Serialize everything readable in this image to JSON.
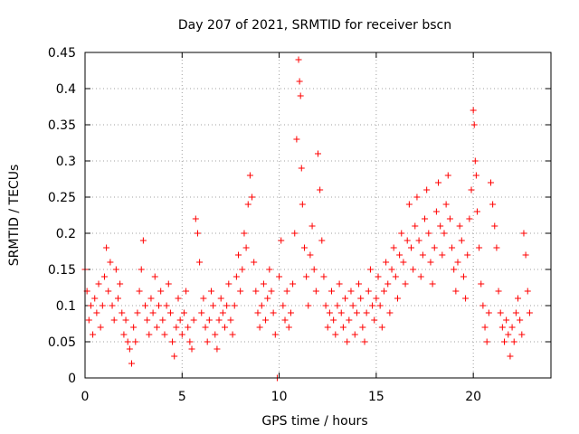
{
  "chart_data": {
    "type": "scatter",
    "title": "Day 207 of 2021, SRMTID for receiver bscn",
    "xlabel": "GPS time / hours",
    "ylabel": "SRMTID / TECUs",
    "xlim": [
      0,
      24
    ],
    "ylim": [
      0,
      0.45
    ],
    "xticks": [
      0,
      5,
      10,
      15,
      20
    ],
    "xtick_labels": [
      "0",
      "5",
      "10",
      "15",
      "20"
    ],
    "yticks": [
      0,
      0.05,
      0.1,
      0.15,
      0.2,
      0.25,
      0.3,
      0.35,
      0.4,
      0.45
    ],
    "ytick_labels": [
      "0",
      "0.05",
      "0.1",
      "0.15",
      "0.2",
      "0.25",
      "0.3",
      "0.35",
      "0.4",
      "0.45"
    ],
    "grid": true,
    "marker": "plus",
    "color": "#ff0000",
    "series": [
      {
        "name": "SRMTID",
        "points": [
          [
            0.0,
            0.15
          ],
          [
            0.1,
            0.12
          ],
          [
            0.2,
            0.08
          ],
          [
            0.3,
            0.1
          ],
          [
            0.4,
            0.06
          ],
          [
            0.5,
            0.11
          ],
          [
            0.6,
            0.09
          ],
          [
            0.7,
            0.13
          ],
          [
            0.8,
            0.07
          ],
          [
            0.9,
            0.1
          ],
          [
            1.0,
            0.14
          ],
          [
            1.1,
            0.18
          ],
          [
            1.2,
            0.12
          ],
          [
            1.3,
            0.16
          ],
          [
            1.4,
            0.1
          ],
          [
            1.5,
            0.08
          ],
          [
            1.6,
            0.15
          ],
          [
            1.7,
            0.11
          ],
          [
            1.8,
            0.13
          ],
          [
            1.9,
            0.09
          ],
          [
            2.0,
            0.06
          ],
          [
            2.1,
            0.08
          ],
          [
            2.2,
            0.05
          ],
          [
            2.3,
            0.04
          ],
          [
            2.4,
            0.02
          ],
          [
            2.5,
            0.07
          ],
          [
            2.6,
            0.05
          ],
          [
            2.7,
            0.09
          ],
          [
            2.8,
            0.12
          ],
          [
            2.9,
            0.15
          ],
          [
            3.0,
            0.19
          ],
          [
            3.1,
            0.1
          ],
          [
            3.2,
            0.08
          ],
          [
            3.3,
            0.06
          ],
          [
            3.4,
            0.11
          ],
          [
            3.5,
            0.09
          ],
          [
            3.6,
            0.14
          ],
          [
            3.7,
            0.07
          ],
          [
            3.8,
            0.1
          ],
          [
            3.9,
            0.12
          ],
          [
            4.0,
            0.08
          ],
          [
            4.1,
            0.06
          ],
          [
            4.2,
            0.1
          ],
          [
            4.3,
            0.13
          ],
          [
            4.4,
            0.09
          ],
          [
            4.5,
            0.05
          ],
          [
            4.6,
            0.03
          ],
          [
            4.7,
            0.07
          ],
          [
            4.8,
            0.11
          ],
          [
            4.9,
            0.08
          ],
          [
            5.0,
            0.06
          ],
          [
            5.1,
            0.09
          ],
          [
            5.2,
            0.12
          ],
          [
            5.3,
            0.07
          ],
          [
            5.4,
            0.05
          ],
          [
            5.5,
            0.04
          ],
          [
            5.6,
            0.08
          ],
          [
            5.7,
            0.22
          ],
          [
            5.8,
            0.2
          ],
          [
            5.9,
            0.16
          ],
          [
            6.0,
            0.09
          ],
          [
            6.1,
            0.11
          ],
          [
            6.2,
            0.07
          ],
          [
            6.3,
            0.05
          ],
          [
            6.4,
            0.08
          ],
          [
            6.5,
            0.12
          ],
          [
            6.6,
            0.1
          ],
          [
            6.7,
            0.06
          ],
          [
            6.8,
            0.04
          ],
          [
            6.9,
            0.08
          ],
          [
            7.0,
            0.11
          ],
          [
            7.1,
            0.09
          ],
          [
            7.2,
            0.07
          ],
          [
            7.3,
            0.1
          ],
          [
            7.4,
            0.13
          ],
          [
            7.5,
            0.08
          ],
          [
            7.6,
            0.06
          ],
          [
            7.7,
            0.1
          ],
          [
            7.8,
            0.14
          ],
          [
            7.9,
            0.17
          ],
          [
            8.0,
            0.12
          ],
          [
            8.1,
            0.15
          ],
          [
            8.2,
            0.2
          ],
          [
            8.3,
            0.18
          ],
          [
            8.4,
            0.24
          ],
          [
            8.5,
            0.28
          ],
          [
            8.6,
            0.25
          ],
          [
            8.7,
            0.16
          ],
          [
            8.8,
            0.12
          ],
          [
            8.9,
            0.09
          ],
          [
            9.0,
            0.07
          ],
          [
            9.1,
            0.1
          ],
          [
            9.2,
            0.13
          ],
          [
            9.3,
            0.08
          ],
          [
            9.4,
            0.11
          ],
          [
            9.5,
            0.15
          ],
          [
            9.6,
            0.12
          ],
          [
            9.7,
            0.09
          ],
          [
            9.8,
            0.06
          ],
          [
            9.9,
            0.0
          ],
          [
            10.0,
            0.14
          ],
          [
            10.1,
            0.19
          ],
          [
            10.2,
            0.1
          ],
          [
            10.3,
            0.08
          ],
          [
            10.4,
            0.12
          ],
          [
            10.5,
            0.07
          ],
          [
            10.6,
            0.09
          ],
          [
            10.7,
            0.13
          ],
          [
            10.8,
            0.2
          ],
          [
            10.9,
            0.33
          ],
          [
            11.0,
            0.44
          ],
          [
            11.05,
            0.41
          ],
          [
            11.1,
            0.39
          ],
          [
            11.15,
            0.29
          ],
          [
            11.2,
            0.24
          ],
          [
            11.3,
            0.18
          ],
          [
            11.4,
            0.14
          ],
          [
            11.5,
            0.1
          ],
          [
            11.6,
            0.17
          ],
          [
            11.7,
            0.21
          ],
          [
            11.8,
            0.15
          ],
          [
            11.9,
            0.12
          ],
          [
            12.0,
            0.31
          ],
          [
            12.1,
            0.26
          ],
          [
            12.2,
            0.19
          ],
          [
            12.3,
            0.14
          ],
          [
            12.4,
            0.1
          ],
          [
            12.5,
            0.07
          ],
          [
            12.6,
            0.09
          ],
          [
            12.7,
            0.12
          ],
          [
            12.8,
            0.08
          ],
          [
            12.9,
            0.06
          ],
          [
            13.0,
            0.1
          ],
          [
            13.1,
            0.13
          ],
          [
            13.2,
            0.09
          ],
          [
            13.3,
            0.07
          ],
          [
            13.4,
            0.11
          ],
          [
            13.5,
            0.05
          ],
          [
            13.6,
            0.08
          ],
          [
            13.7,
            0.12
          ],
          [
            13.8,
            0.1
          ],
          [
            13.9,
            0.06
          ],
          [
            14.0,
            0.09
          ],
          [
            14.1,
            0.13
          ],
          [
            14.2,
            0.11
          ],
          [
            14.3,
            0.07
          ],
          [
            14.4,
            0.05
          ],
          [
            14.5,
            0.09
          ],
          [
            14.6,
            0.12
          ],
          [
            14.7,
            0.15
          ],
          [
            14.8,
            0.1
          ],
          [
            14.9,
            0.08
          ],
          [
            15.0,
            0.11
          ],
          [
            15.1,
            0.14
          ],
          [
            15.2,
            0.1
          ],
          [
            15.3,
            0.07
          ],
          [
            15.4,
            0.12
          ],
          [
            15.5,
            0.16
          ],
          [
            15.6,
            0.13
          ],
          [
            15.7,
            0.09
          ],
          [
            15.8,
            0.15
          ],
          [
            15.9,
            0.18
          ],
          [
            16.0,
            0.14
          ],
          [
            16.1,
            0.11
          ],
          [
            16.2,
            0.17
          ],
          [
            16.3,
            0.2
          ],
          [
            16.4,
            0.16
          ],
          [
            16.5,
            0.13
          ],
          [
            16.6,
            0.19
          ],
          [
            16.7,
            0.24
          ],
          [
            16.8,
            0.18
          ],
          [
            16.9,
            0.15
          ],
          [
            17.0,
            0.21
          ],
          [
            17.1,
            0.25
          ],
          [
            17.2,
            0.19
          ],
          [
            17.3,
            0.14
          ],
          [
            17.4,
            0.17
          ],
          [
            17.5,
            0.22
          ],
          [
            17.6,
            0.26
          ],
          [
            17.7,
            0.2
          ],
          [
            17.8,
            0.16
          ],
          [
            17.9,
            0.13
          ],
          [
            18.0,
            0.18
          ],
          [
            18.1,
            0.23
          ],
          [
            18.2,
            0.27
          ],
          [
            18.3,
            0.21
          ],
          [
            18.4,
            0.17
          ],
          [
            18.5,
            0.2
          ],
          [
            18.6,
            0.24
          ],
          [
            18.7,
            0.28
          ],
          [
            18.8,
            0.22
          ],
          [
            18.9,
            0.18
          ],
          [
            19.0,
            0.15
          ],
          [
            19.1,
            0.12
          ],
          [
            19.2,
            0.16
          ],
          [
            19.3,
            0.21
          ],
          [
            19.4,
            0.19
          ],
          [
            19.5,
            0.14
          ],
          [
            19.6,
            0.11
          ],
          [
            19.7,
            0.17
          ],
          [
            19.8,
            0.22
          ],
          [
            19.9,
            0.26
          ],
          [
            20.0,
            0.37
          ],
          [
            20.05,
            0.35
          ],
          [
            20.1,
            0.3
          ],
          [
            20.15,
            0.28
          ],
          [
            20.2,
            0.23
          ],
          [
            20.3,
            0.18
          ],
          [
            20.4,
            0.13
          ],
          [
            20.5,
            0.1
          ],
          [
            20.6,
            0.07
          ],
          [
            20.7,
            0.05
          ],
          [
            20.8,
            0.09
          ],
          [
            20.9,
            0.27
          ],
          [
            21.0,
            0.24
          ],
          [
            21.1,
            0.21
          ],
          [
            21.2,
            0.18
          ],
          [
            21.3,
            0.12
          ],
          [
            21.4,
            0.09
          ],
          [
            21.5,
            0.07
          ],
          [
            21.6,
            0.05
          ],
          [
            21.7,
            0.08
          ],
          [
            21.8,
            0.06
          ],
          [
            21.9,
            0.03
          ],
          [
            22.0,
            0.07
          ],
          [
            22.1,
            0.05
          ],
          [
            22.2,
            0.09
          ],
          [
            22.3,
            0.11
          ],
          [
            22.4,
            0.08
          ],
          [
            22.5,
            0.06
          ],
          [
            22.6,
            0.2
          ],
          [
            22.7,
            0.17
          ],
          [
            22.8,
            0.12
          ],
          [
            22.9,
            0.09
          ]
        ]
      }
    ]
  }
}
